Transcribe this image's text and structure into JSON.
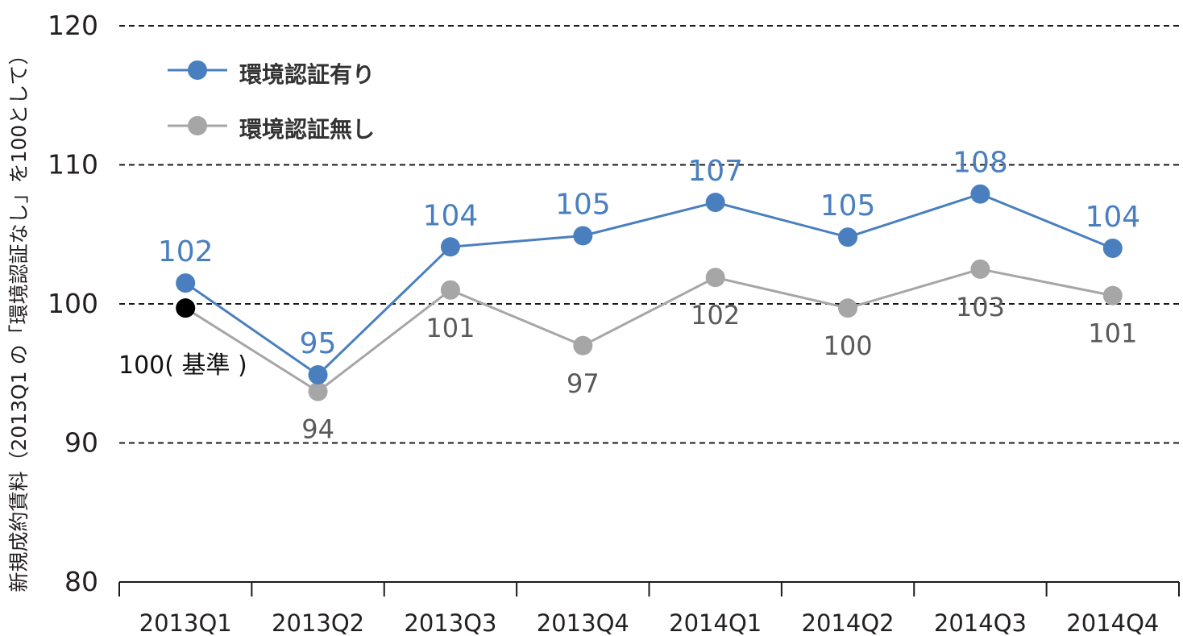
{
  "chart_data": {
    "type": "line",
    "ylabel": "新規成約賃料（2013Q1 の「環境認証なし」を100として）",
    "ylim": [
      80,
      120
    ],
    "yticks": [
      80,
      90,
      100,
      110,
      120
    ],
    "grid": true,
    "legend_position": "top-left",
    "categories": [
      "2013Q1",
      "2013Q2",
      "2013Q3",
      "2013Q4",
      "2014Q1",
      "2014Q2",
      "2014Q3",
      "2014Q4"
    ],
    "series": [
      {
        "name": "環境認証有り",
        "color": "#4a7fbf",
        "values": [
          101.5,
          94.9,
          104.1,
          104.9,
          107.3,
          104.8,
          107.9,
          104.0
        ],
        "labels": [
          "102",
          "95",
          "104",
          "105",
          "107",
          "105",
          "108",
          "104"
        ]
      },
      {
        "name": "環境認証無し",
        "color": "#a6a6a6",
        "values": [
          99.7,
          93.7,
          101.0,
          97.0,
          101.9,
          99.7,
          102.5,
          100.6
        ],
        "labels": [
          "100",
          "94",
          "101",
          "97",
          "102",
          "100",
          "103",
          "101"
        ]
      }
    ],
    "baseline": {
      "label": "100( 基準 )",
      "category": "2013Q1",
      "value": 99.7,
      "color": "#000000"
    }
  }
}
